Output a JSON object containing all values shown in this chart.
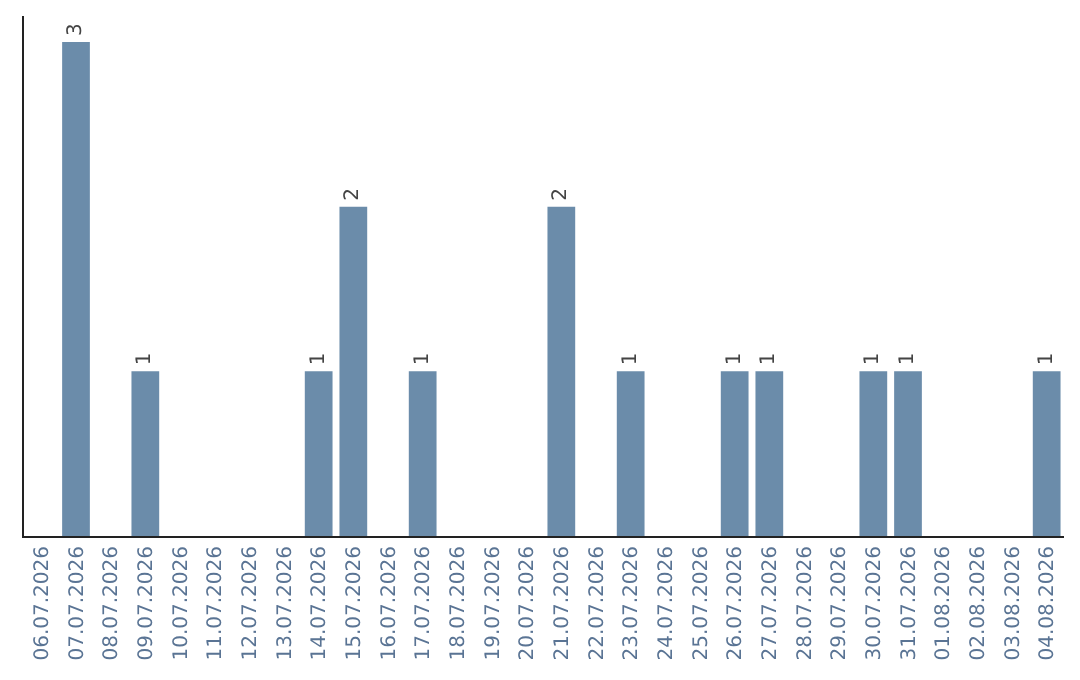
{
  "chart_data": {
    "type": "bar",
    "categories": [
      "06.07.2026",
      "07.07.2026",
      "08.07.2026",
      "09.07.2026",
      "10.07.2026",
      "11.07.2026",
      "12.07.2026",
      "13.07.2026",
      "14.07.2026",
      "15.07.2026",
      "16.07.2026",
      "17.07.2026",
      "18.07.2026",
      "19.07.2026",
      "20.07.2026",
      "21.07.2026",
      "22.07.2026",
      "23.07.2026",
      "24.07.2026",
      "25.07.2026",
      "26.07.2026",
      "27.07.2026",
      "28.07.2026",
      "29.07.2026",
      "30.07.2026",
      "31.07.2026",
      "01.08.2026",
      "02.08.2026",
      "03.08.2026",
      "04.08.2026"
    ],
    "values": [
      0,
      3,
      0,
      1,
      0,
      0,
      0,
      0,
      1,
      2,
      0,
      1,
      0,
      0,
      0,
      2,
      0,
      1,
      0,
      0,
      1,
      1,
      0,
      0,
      1,
      1,
      0,
      0,
      0,
      1
    ],
    "value_labels": [
      null,
      "3",
      null,
      "1",
      null,
      null,
      null,
      null,
      "1",
      "2",
      null,
      "1",
      null,
      null,
      null,
      "2",
      null,
      "1",
      null,
      null,
      "1",
      "1",
      null,
      null,
      "1",
      "1",
      null,
      null,
      null,
      "1"
    ],
    "color": "#6b8caa",
    "tick_labels": "x",
    "grid": false,
    "legend": false
  }
}
